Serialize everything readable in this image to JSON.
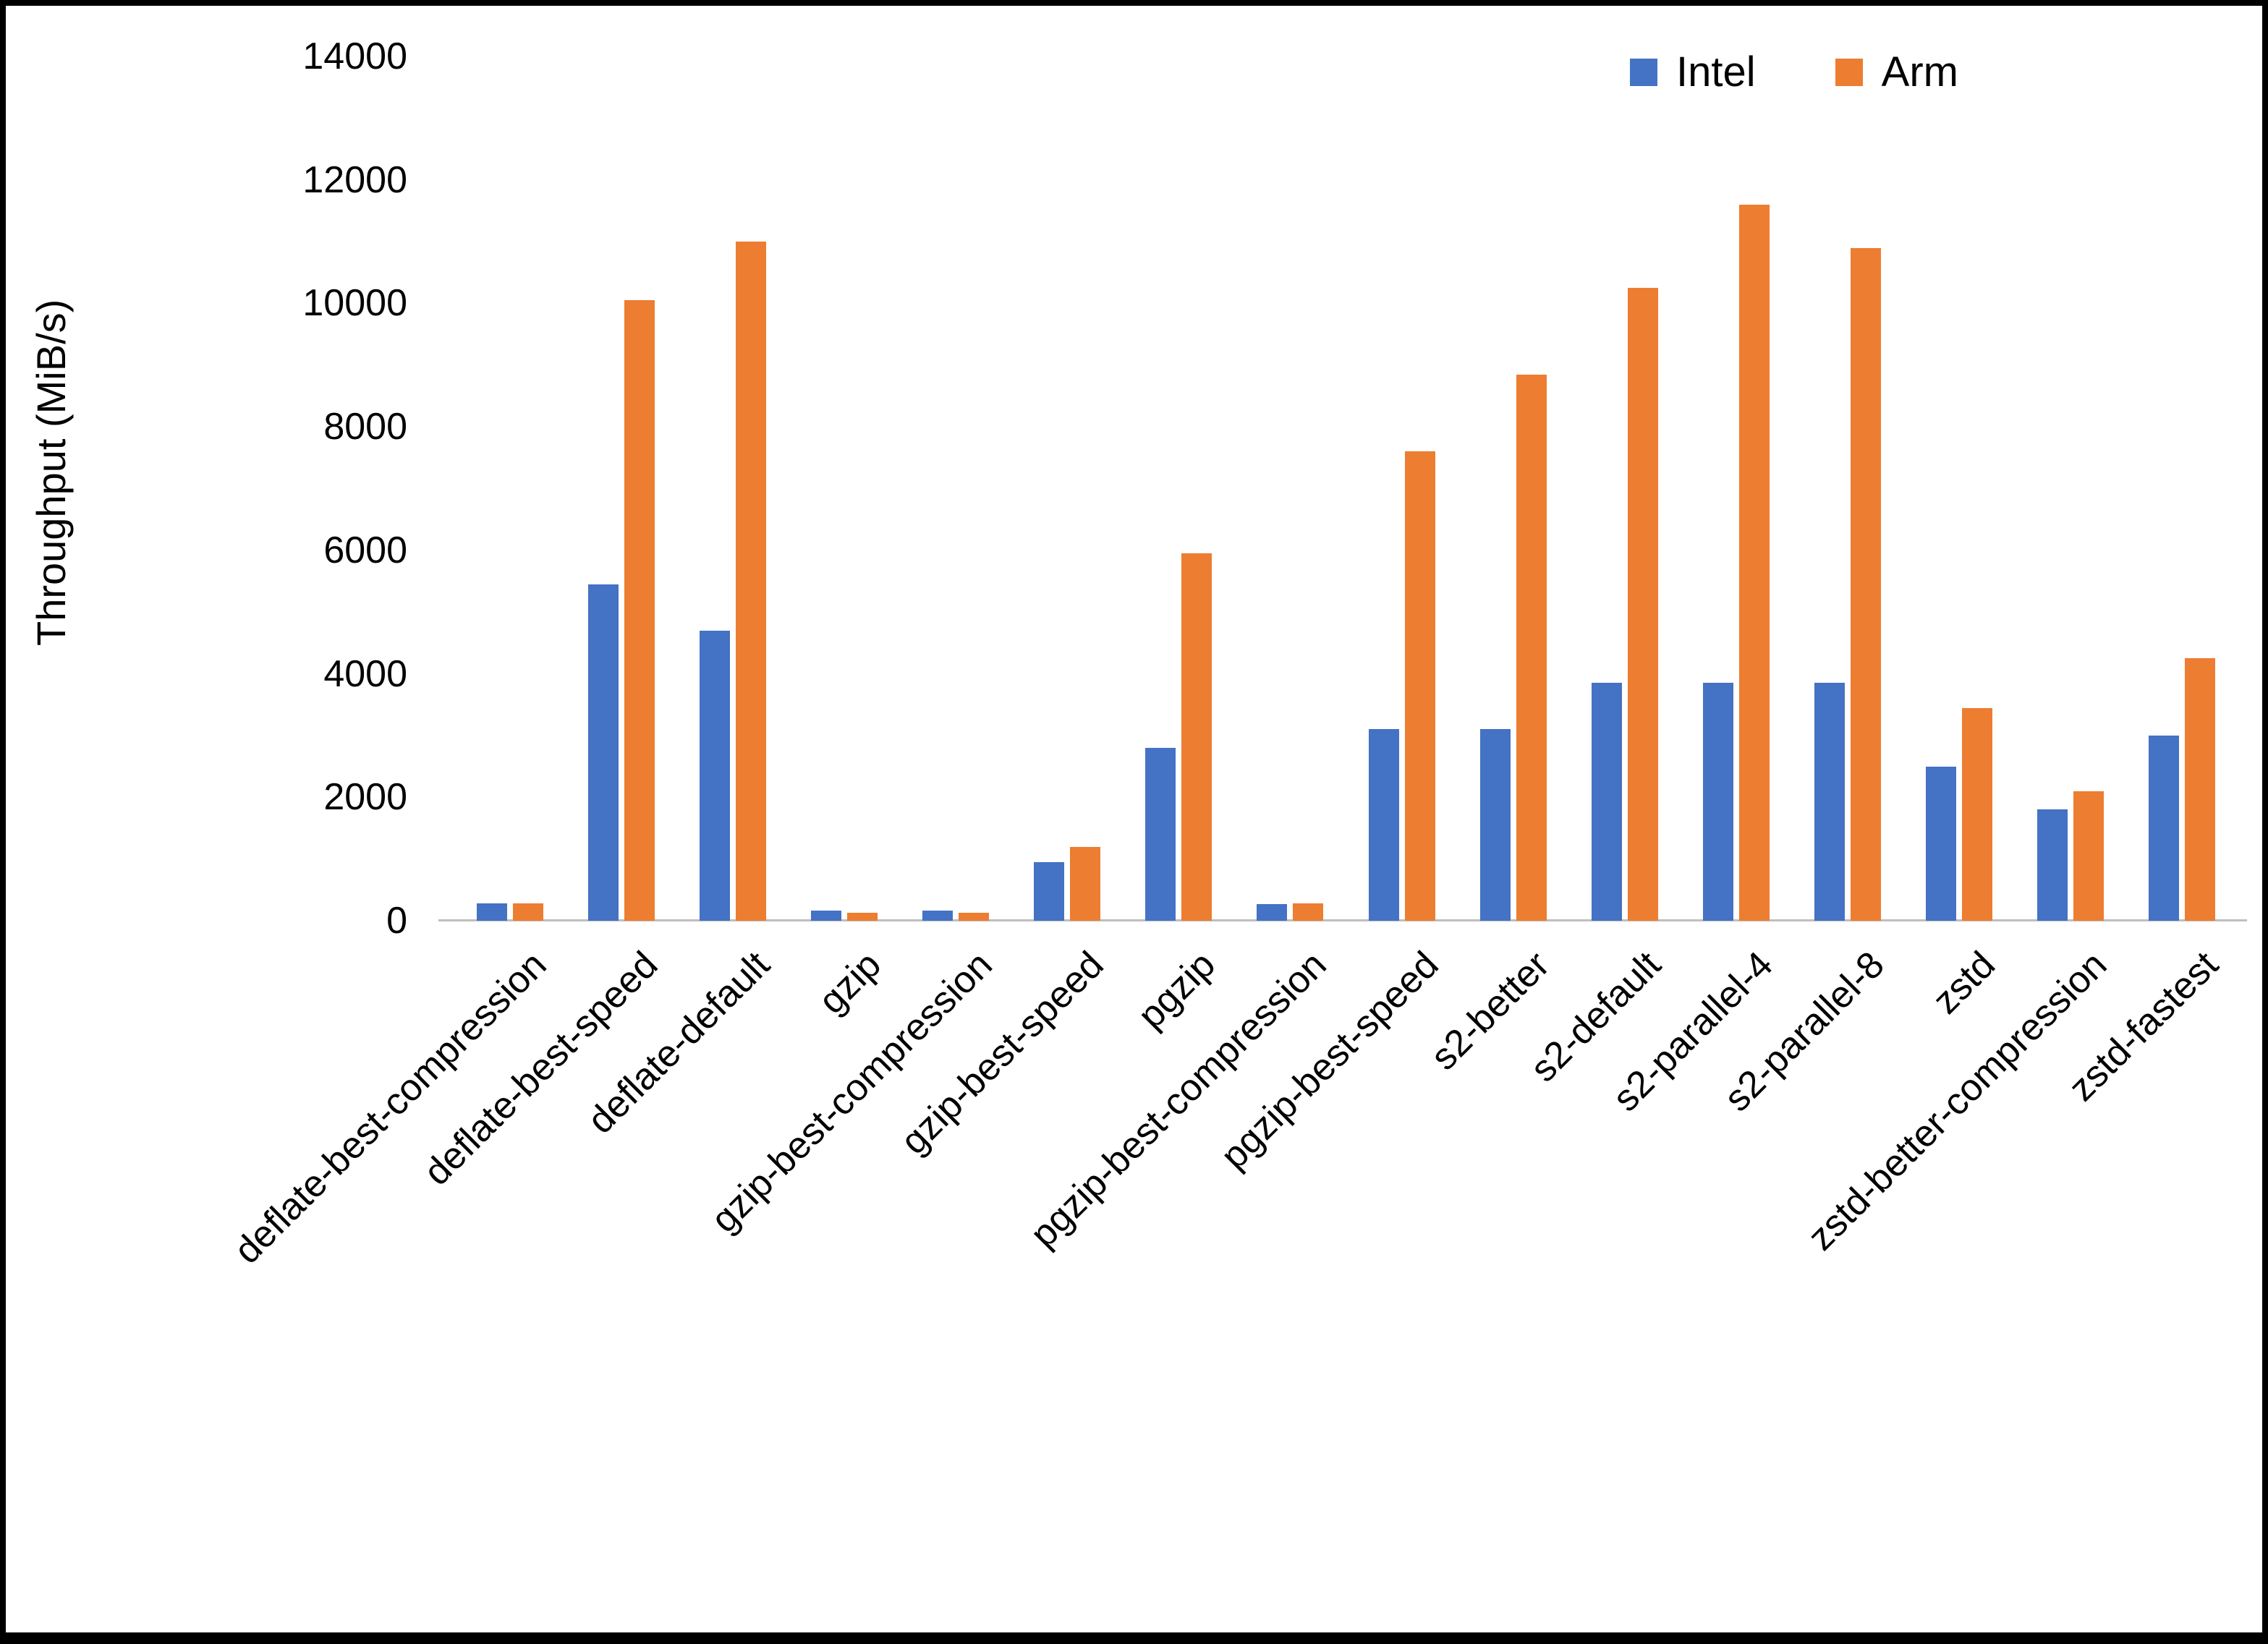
{
  "chart_data": {
    "type": "bar",
    "title": "",
    "xlabel": "",
    "ylabel": "Throughput (MiB/s)",
    "ylim": [
      0,
      14000
    ],
    "ytick_step": 2000,
    "grid": false,
    "legend_position": "top-right",
    "categories": [
      "deflate-best-compression",
      "deflate-best-speed",
      "deflate-default",
      "gzip",
      "gzip-best-compression",
      "gzip-best-speed",
      "pgzip",
      "pgzip-best-compression",
      "pgzip-best-speed",
      "s2-better",
      "s2-default",
      "s2-parallel-4",
      "s2-parallel-8",
      "zstd",
      "zstd-better-compression",
      "zstd-fastest"
    ],
    "series": [
      {
        "name": "Intel",
        "color": "#4472C4",
        "values": [
          280,
          5450,
          4700,
          160,
          160,
          950,
          2800,
          270,
          3100,
          3100,
          3850,
          3850,
          3850,
          2500,
          1800,
          3000
        ]
      },
      {
        "name": "Arm",
        "color": "#ED7D31",
        "values": [
          280,
          10050,
          11000,
          130,
          130,
          1200,
          5950,
          280,
          7600,
          8850,
          10250,
          11600,
          10900,
          3450,
          2100,
          4250
        ]
      }
    ]
  }
}
